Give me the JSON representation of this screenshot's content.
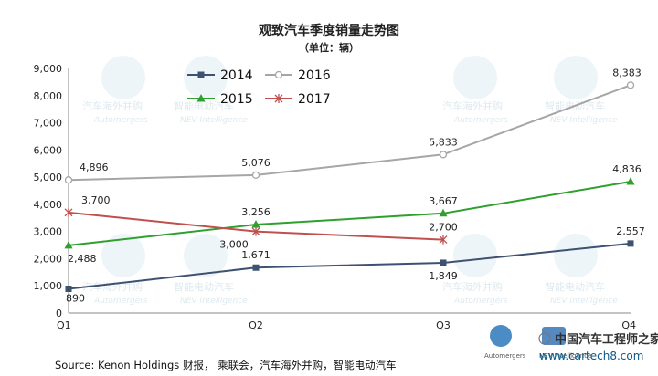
{
  "chart_data": {
    "type": "line",
    "title": "观致汽车季度销量走势图",
    "subtitle": "（单位：辆）",
    "categories": [
      "Q1",
      "Q2",
      "Q3",
      "Q4"
    ],
    "ylim": [
      0,
      9000
    ],
    "yticks": [
      "0",
      "1,000",
      "2,000",
      "3,000",
      "4,000",
      "5,000",
      "6,000",
      "7,000",
      "8,000",
      "9,000"
    ],
    "grid": false,
    "legend_position": "top-left",
    "series": [
      {
        "name": "2014",
        "values": [
          890,
          1671,
          1849,
          2557
        ],
        "labels": [
          "890",
          "1,671",
          "1,849",
          "2,557"
        ],
        "color": "#3f5170",
        "marker": "square"
      },
      {
        "name": "2016",
        "values": [
          4896,
          5076,
          5833,
          8383
        ],
        "labels": [
          "4,896",
          "5,076",
          "5,833",
          "8,383"
        ],
        "color": "#a6a6a6",
        "marker": "circle"
      },
      {
        "name": "2015",
        "values": [
          2488,
          3256,
          3667,
          4836
        ],
        "labels": [
          "2,488",
          "3,256",
          "3,667",
          "4,836"
        ],
        "color": "#2ea02e",
        "marker": "triangle"
      },
      {
        "name": "2017",
        "values": [
          3700,
          3000,
          2700,
          null
        ],
        "labels": [
          "3,700",
          "3,000",
          "2,700",
          ""
        ],
        "color": "#c0504d",
        "marker": "x"
      }
    ]
  },
  "source": "Source: Kenon Holdings 财报， 乘联会，汽车海外并购，智能电动汽车",
  "watermarks": {
    "brand1_cn": "汽车海外并购",
    "brand1_en": "Automergers",
    "brand2_cn": "智能电动汽车",
    "brand2_en": "NEV Intelligence"
  },
  "footer_brand": {
    "site_name": "中国汽车工程师之家",
    "site_url": "www.cartech8.com",
    "logo1_label": "Automergers",
    "logo2_label": "NEV Intelligence"
  }
}
